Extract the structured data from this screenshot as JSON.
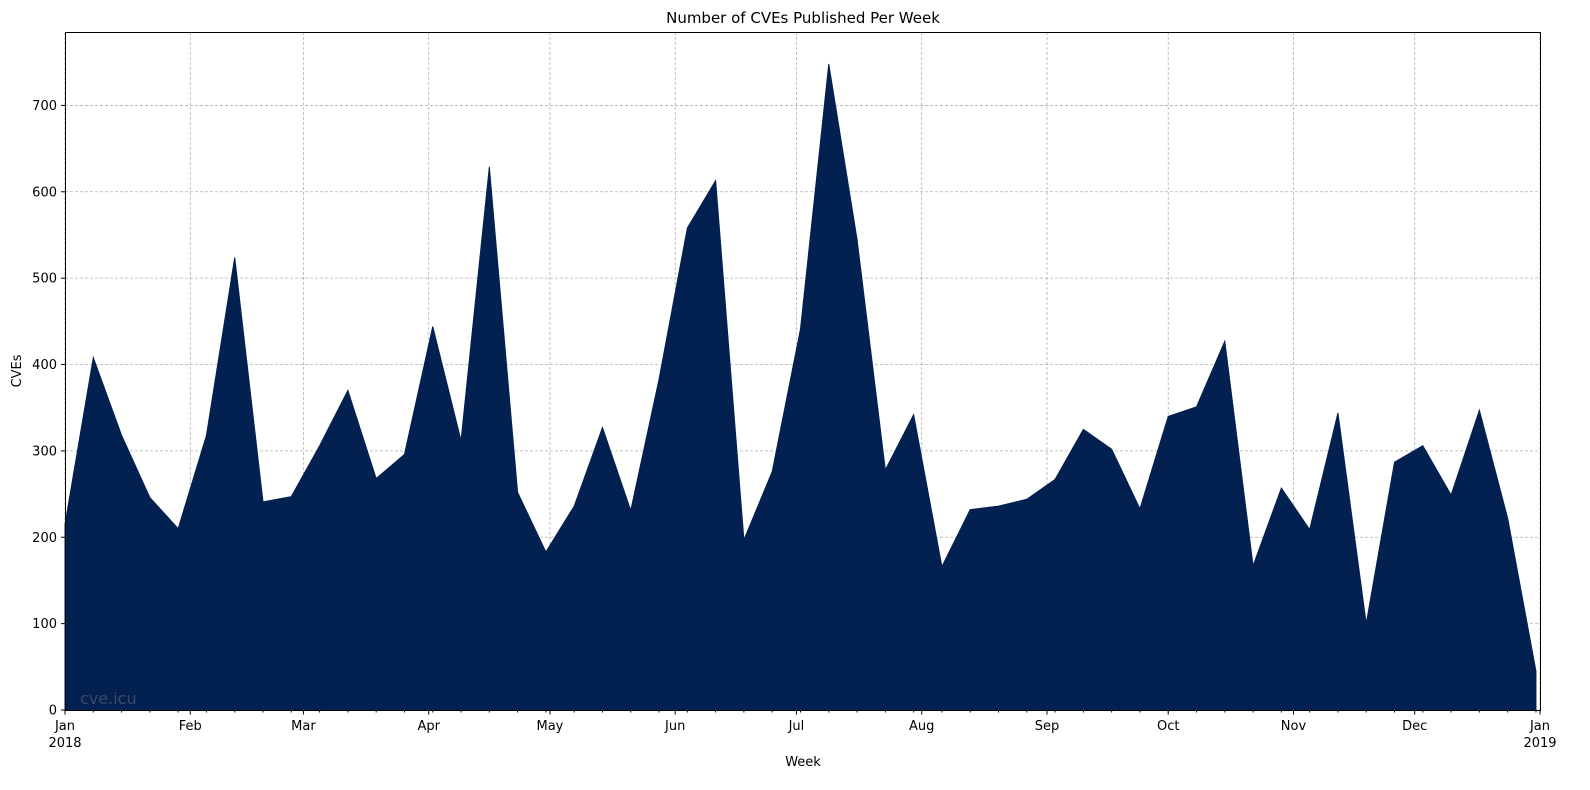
{
  "chart_data": {
    "type": "area",
    "title": "Number of CVEs Published Per Week",
    "xlabel": "Week",
    "ylabel": "CVEs",
    "watermark": "cve.icu",
    "fill_color": "#022150",
    "grid": true,
    "ylim": [
      0,
      785
    ],
    "xlim": [
      "2018-01-01",
      "2019-01-01"
    ],
    "y_ticks": [
      0,
      100,
      200,
      300,
      400,
      500,
      600,
      700
    ],
    "x_major_ticks": [
      {
        "date": "2018-01-01",
        "label": "Jan",
        "sublabel": "2018"
      },
      {
        "date": "2018-02-01",
        "label": "Feb",
        "sublabel": ""
      },
      {
        "date": "2018-03-01",
        "label": "Mar",
        "sublabel": ""
      },
      {
        "date": "2018-04-01",
        "label": "Apr",
        "sublabel": ""
      },
      {
        "date": "2018-05-01",
        "label": "May",
        "sublabel": ""
      },
      {
        "date": "2018-06-01",
        "label": "Jun",
        "sublabel": ""
      },
      {
        "date": "2018-07-01",
        "label": "Jul",
        "sublabel": ""
      },
      {
        "date": "2018-08-01",
        "label": "Aug",
        "sublabel": ""
      },
      {
        "date": "2018-09-01",
        "label": "Sep",
        "sublabel": ""
      },
      {
        "date": "2018-10-01",
        "label": "Oct",
        "sublabel": ""
      },
      {
        "date": "2018-11-01",
        "label": "Nov",
        "sublabel": ""
      },
      {
        "date": "2018-12-01",
        "label": "Dec",
        "sublabel": ""
      },
      {
        "date": "2019-01-01",
        "label": "Jan",
        "sublabel": "2019"
      }
    ],
    "series": [
      {
        "x": [
          "2018-01-01",
          "2018-01-08",
          "2018-01-15",
          "2018-01-22",
          "2018-01-29",
          "2018-02-05",
          "2018-02-12",
          "2018-02-19",
          "2018-02-26",
          "2018-03-05",
          "2018-03-12",
          "2018-03-19",
          "2018-03-26",
          "2018-04-02",
          "2018-04-09",
          "2018-04-16",
          "2018-04-23",
          "2018-04-30",
          "2018-05-07",
          "2018-05-14",
          "2018-05-21",
          "2018-05-28",
          "2018-06-04",
          "2018-06-11",
          "2018-06-18",
          "2018-06-25",
          "2018-07-02",
          "2018-07-09",
          "2018-07-16",
          "2018-07-23",
          "2018-07-30",
          "2018-08-06",
          "2018-08-13",
          "2018-08-20",
          "2018-08-27",
          "2018-09-03",
          "2018-09-10",
          "2018-09-17",
          "2018-09-24",
          "2018-10-01",
          "2018-10-08",
          "2018-10-15",
          "2018-10-22",
          "2018-10-29",
          "2018-11-05",
          "2018-11-12",
          "2018-11-19",
          "2018-11-26",
          "2018-12-03",
          "2018-12-10",
          "2018-12-17",
          "2018-12-24",
          "2018-12-31"
        ],
        "values": [
          215,
          408,
          318,
          246,
          210,
          318,
          524,
          241,
          247,
          306,
          370,
          268,
          296,
          444,
          312,
          629,
          252,
          183,
          236,
          327,
          231,
          383,
          558,
          613,
          197,
          276,
          441,
          748,
          545,
          278,
          342,
          166,
          232,
          236,
          244,
          267,
          325,
          302,
          233,
          340,
          351,
          427,
          167,
          257,
          209,
          344,
          100,
          287,
          306,
          249,
          347,
          222,
          45
        ]
      }
    ]
  }
}
